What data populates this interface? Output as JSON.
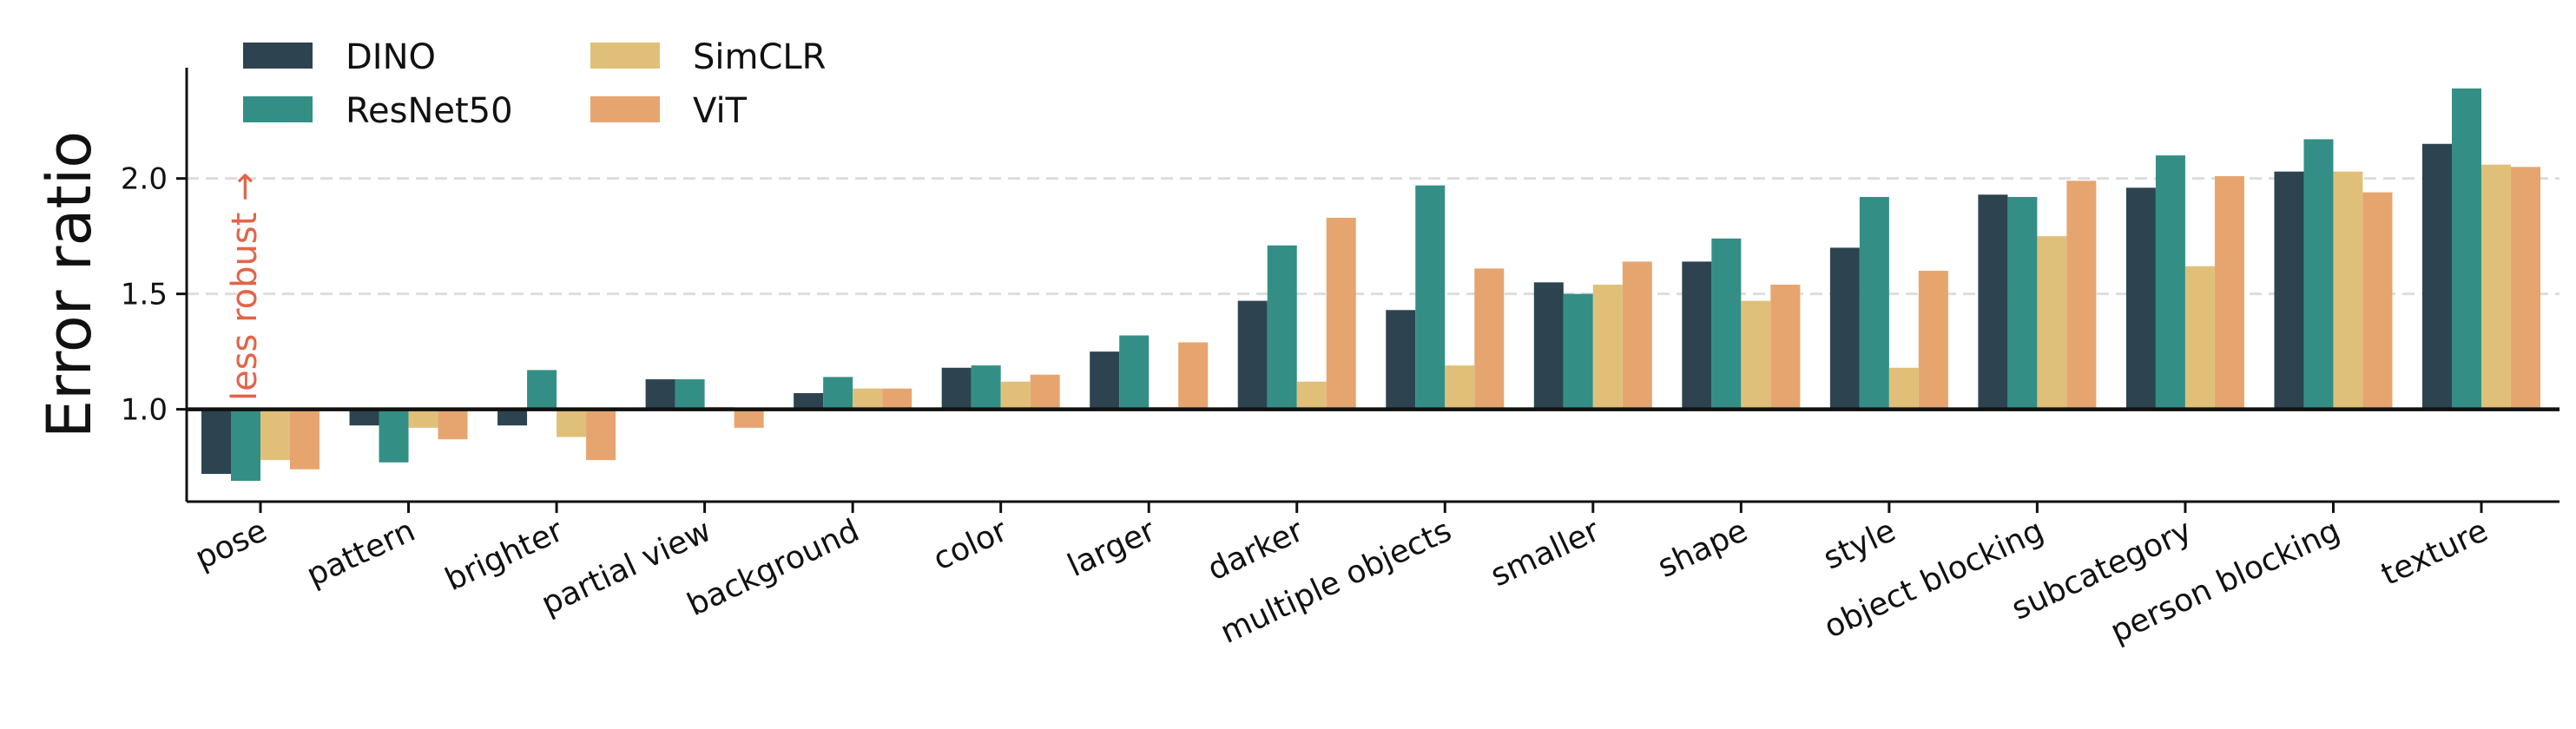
{
  "chart_data": {
    "type": "bar",
    "title": "",
    "xlabel": "",
    "ylabel": "Error ratio",
    "ylim": [
      0.6,
      2.48
    ],
    "yticks": [
      1.0,
      1.5,
      2.0
    ],
    "ytick_labels": [
      "1.0",
      "1.5",
      "2.0"
    ],
    "baseline": 1.0,
    "gridlines": [
      1.5,
      2.0
    ],
    "legend_position": "top-left",
    "categories": [
      "pose",
      "pattern",
      "brighter",
      "partial view",
      "background",
      "color",
      "larger",
      "darker",
      "multiple objects",
      "smaller",
      "shape",
      "style",
      "object blocking",
      "subcategory",
      "person blocking",
      "texture"
    ],
    "series": [
      {
        "name": "DINO",
        "color": "#2d4450",
        "values": [
          0.72,
          0.93,
          0.93,
          1.13,
          1.07,
          1.18,
          1.25,
          1.47,
          1.43,
          1.55,
          1.64,
          1.7,
          1.93,
          1.96,
          2.03,
          2.15
        ]
      },
      {
        "name": "ResNet50",
        "color": "#338f85",
        "values": [
          0.69,
          0.77,
          1.17,
          1.13,
          1.14,
          1.19,
          1.32,
          1.71,
          1.97,
          1.5,
          1.74,
          1.92,
          1.92,
          2.1,
          2.17,
          2.39
        ]
      },
      {
        "name": "SimCLR",
        "color": "#e0c079",
        "values": [
          0.78,
          0.92,
          0.88,
          1.01,
          1.09,
          1.12,
          1.01,
          1.12,
          1.19,
          1.54,
          1.47,
          1.18,
          1.75,
          1.62,
          2.03,
          2.06
        ]
      },
      {
        "name": "ViT",
        "color": "#e6a56f",
        "values": [
          0.74,
          0.87,
          0.78,
          0.92,
          1.09,
          1.15,
          1.29,
          1.83,
          1.61,
          1.64,
          1.54,
          1.6,
          1.99,
          2.01,
          1.94,
          2.05
        ]
      }
    ],
    "annotation": {
      "text": "less robust →",
      "color": "#e1654a"
    }
  }
}
